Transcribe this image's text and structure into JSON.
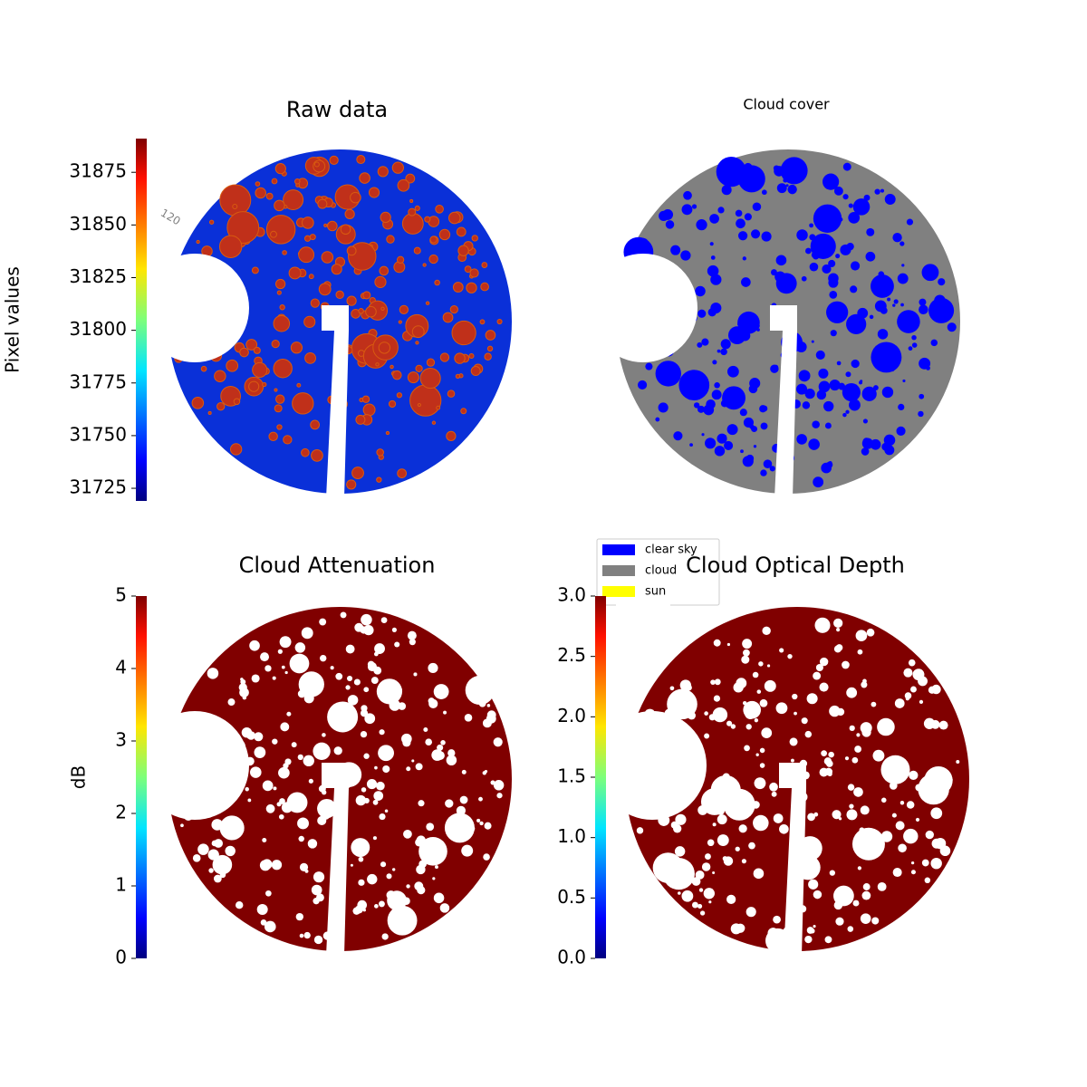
{
  "chart_data": [
    {
      "type": "image",
      "title": "Raw data",
      "colorbar_label": "Pixel values",
      "colormap": "jet",
      "clim": [
        31719,
        31891
      ],
      "cticks": [
        31725,
        31750,
        31775,
        31800,
        31825,
        31850,
        31875
      ],
      "annotations": [
        "120"
      ]
    },
    {
      "type": "image",
      "title": "Cloud cover",
      "legend": [
        {
          "name": "clear sky",
          "color": "#0000ff"
        },
        {
          "name": "cloud",
          "color": "#808080"
        },
        {
          "name": "sun",
          "color": "#ffff00"
        }
      ]
    },
    {
      "type": "image",
      "title": "Cloud Attenuation",
      "colorbar_label": "dB",
      "colormap": "jet",
      "clim": [
        0,
        5
      ],
      "cticks": [
        0,
        1,
        2,
        3,
        4,
        5
      ]
    },
    {
      "type": "image",
      "title": "Cloud Optical Depth",
      "colormap": "jet",
      "clim": [
        0,
        3
      ],
      "cticks": [
        {
          "value": 0,
          "label": "0.0"
        },
        {
          "value": 0.5,
          "label": "0.5"
        },
        {
          "value": 1,
          "label": "1.0"
        },
        {
          "value": 1.5,
          "label": "1.5"
        },
        {
          "value": 2,
          "label": "2.0"
        },
        {
          "value": 2.5,
          "label": "2.5"
        },
        {
          "value": 3,
          "label": "3.0"
        }
      ]
    }
  ]
}
